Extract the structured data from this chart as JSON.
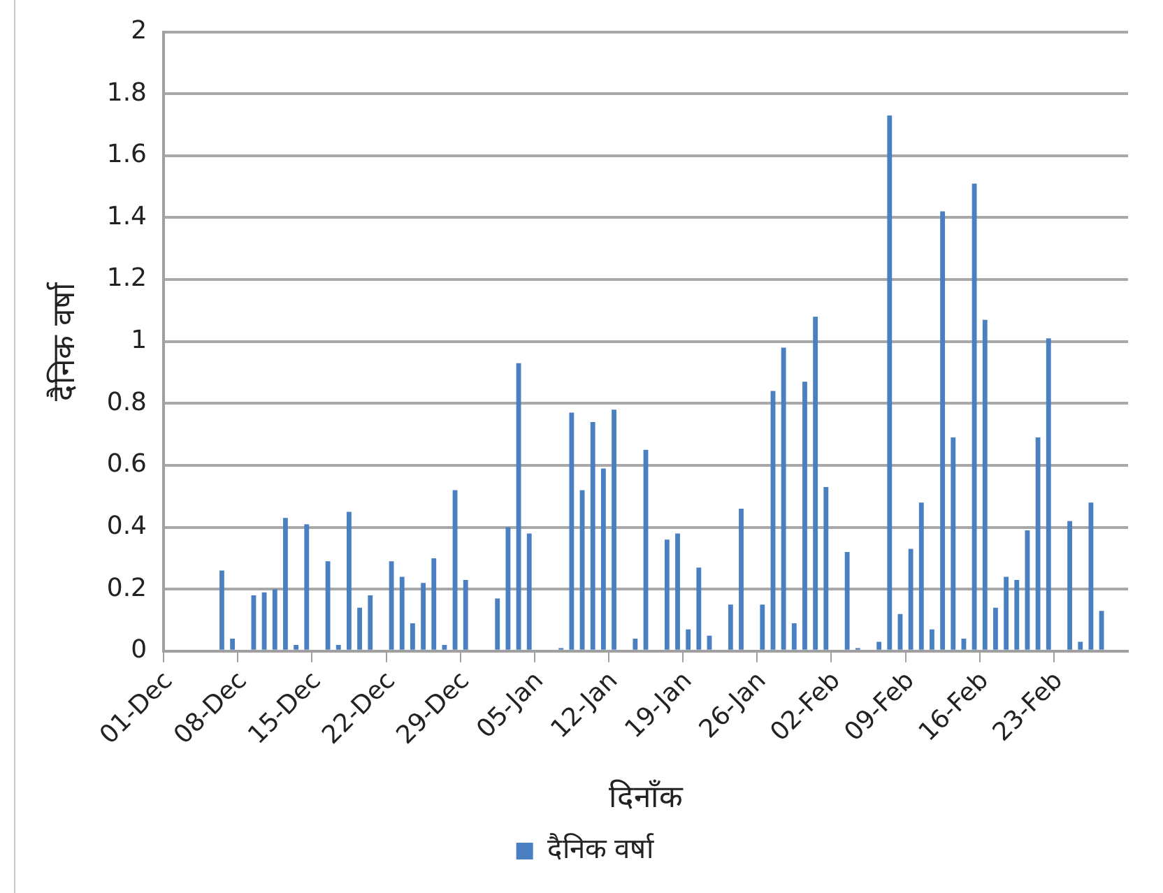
{
  "chart_data": {
    "type": "bar",
    "xlabel": "दिनाँक",
    "ylabel": "दैनिक वर्षा",
    "categories": [
      "01-Dec",
      null,
      null,
      null,
      null,
      null,
      null,
      "08-Dec",
      null,
      null,
      null,
      null,
      null,
      null,
      "15-Dec",
      null,
      null,
      null,
      null,
      null,
      null,
      "22-Dec",
      null,
      null,
      null,
      null,
      null,
      null,
      "29-Dec",
      null,
      null,
      null,
      null,
      null,
      null,
      "05-Jan",
      null,
      null,
      null,
      null,
      null,
      null,
      "12-Jan",
      null,
      null,
      null,
      null,
      null,
      null,
      "19-Jan",
      null,
      null,
      null,
      null,
      null,
      null,
      "26-Jan",
      null,
      null,
      null,
      null,
      null,
      null,
      "02-Feb",
      null,
      null,
      null,
      null,
      null,
      null,
      "09-Feb",
      null,
      null,
      null,
      null,
      null,
      null,
      "16-Feb",
      null,
      null,
      null,
      null,
      null,
      null,
      "23-Feb",
      null,
      null,
      null,
      null,
      null,
      null
    ],
    "series": [
      {
        "name": "दैनिक वर्षा",
        "color": "#4a7fc1",
        "values": [
          0,
          0,
          0,
          0,
          0,
          0.26,
          0.04,
          0,
          0.18,
          0.19,
          0.2,
          0.43,
          0.02,
          0.41,
          0,
          0.29,
          0.02,
          0.45,
          0.14,
          0.18,
          0,
          0.29,
          0.24,
          0.09,
          0.22,
          0.3,
          0.02,
          0.52,
          0.23,
          0,
          0,
          0.17,
          0.4,
          0.93,
          0.38,
          0,
          0,
          0.01,
          0.77,
          0.52,
          0.74,
          0.59,
          0.78,
          0,
          0.04,
          0.65,
          0,
          0.36,
          0.38,
          0.07,
          0.27,
          0.05,
          0,
          0.15,
          0.46,
          0,
          0.15,
          0.84,
          0.98,
          0.09,
          0.87,
          1.08,
          0.53,
          0,
          0.32,
          0.01,
          0,
          0.03,
          1.73,
          0.12,
          0.33,
          0.48,
          0.07,
          1.42,
          0.69,
          0.04,
          1.51,
          1.07,
          0.14,
          0.24,
          0.23,
          0.39,
          0.69,
          1.01,
          0,
          0.42,
          0.03,
          0.48,
          0.13,
          0,
          0
        ]
      }
    ],
    "ylim": [
      0,
      2
    ],
    "yticks": [
      0,
      0.2,
      0.4,
      0.6,
      0.8,
      1,
      1.2,
      1.4,
      1.6,
      1.8,
      2
    ],
    "grid": "y",
    "legend": "bottom"
  }
}
